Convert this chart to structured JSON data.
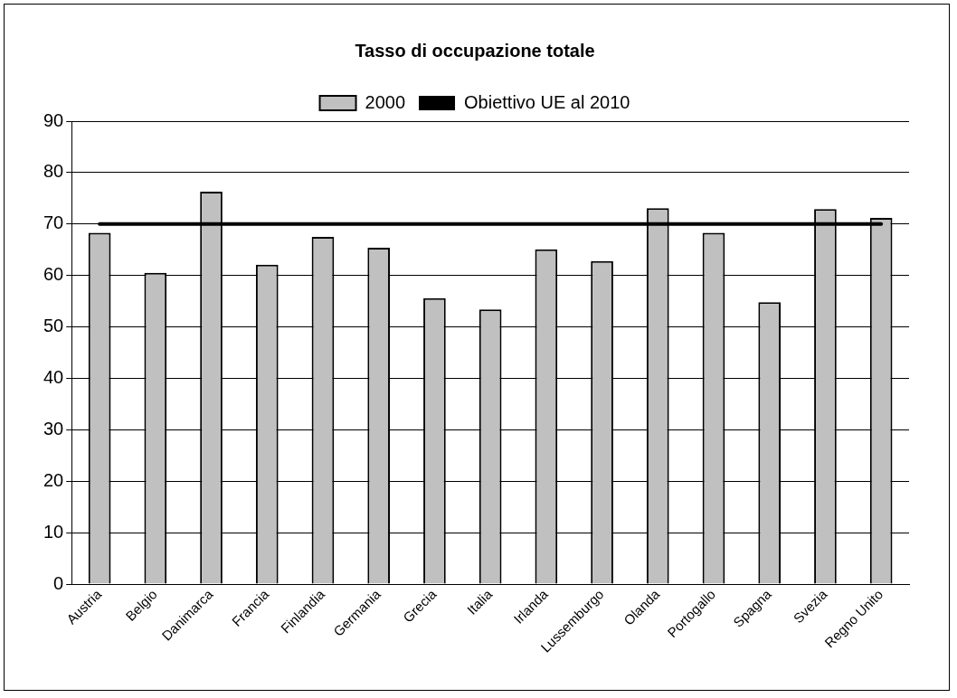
{
  "chart_data": {
    "type": "bar",
    "title": "Tasso di occupazione totale",
    "categories": [
      "Austria",
      "Belgio",
      "Danimarca",
      "Francia",
      "Finlandia",
      "Germania",
      "Grecia",
      "Italia",
      "Irlanda",
      "Lussemburgo",
      "Olanda",
      "Portogallo",
      "Spagna",
      "Svezia",
      "Regno Unito"
    ],
    "series": [
      {
        "name": "2000",
        "color": "#c0c0c0",
        "values": [
          68.3,
          60.5,
          76.3,
          62.1,
          67.5,
          65.4,
          55.6,
          53.4,
          65.1,
          62.8,
          73.1,
          68.3,
          54.8,
          72.9,
          71.2
        ]
      },
      {
        "name": "Obiettivo UE al 2010",
        "type": "line",
        "color": "#000000",
        "values": [
          70,
          70,
          70,
          70,
          70,
          70,
          70,
          70,
          70,
          70,
          70,
          70,
          70,
          70,
          70
        ]
      }
    ],
    "ylim": [
      0,
      90
    ],
    "yticks": [
      0,
      10,
      20,
      30,
      40,
      50,
      60,
      70,
      80,
      90
    ],
    "grid": "y",
    "legend": "top",
    "marker": "none",
    "line_style": "solid"
  }
}
